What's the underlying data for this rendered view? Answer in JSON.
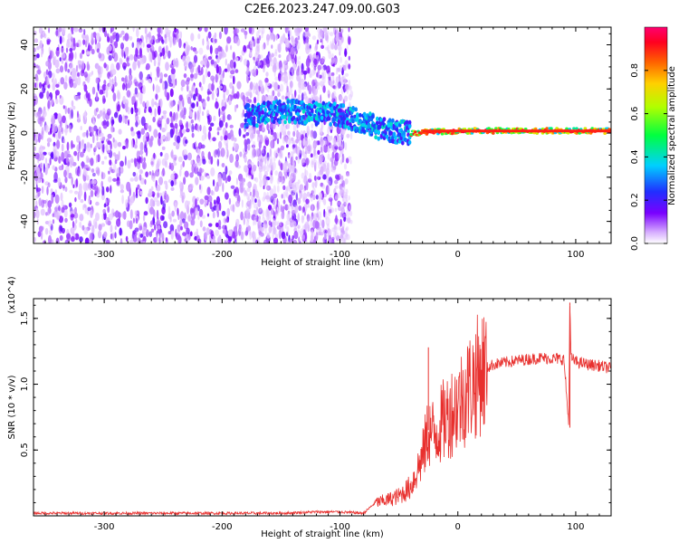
{
  "title": "C2E6.2023.247.09.00.G03",
  "colors": {
    "snr_line": "#e8302e",
    "spectro_noise": "#6a00e8",
    "axis": "#000000"
  },
  "chart_data": [
    {
      "type": "heatmap",
      "title": "C2E6.2023.247.09.00.G03",
      "xlabel": "Height of straight line (km)",
      "ylabel": "Frequency (Hz)",
      "xlim": [
        -360,
        130
      ],
      "ylim": [
        -50,
        48
      ],
      "xticks": [
        -300,
        -200,
        -100,
        0,
        100
      ],
      "yticks": [
        -40,
        -20,
        0,
        20,
        40
      ],
      "description_of_signal": "Broadband noise for heights < -92 km; tracked signal near 0-10 Hz converging to ~1 Hz beyond -40 km",
      "signal_center_hz": [
        {
          "x": -175,
          "y": 8
        },
        {
          "x": -150,
          "y": 10
        },
        {
          "x": -120,
          "y": 9
        },
        {
          "x": -100,
          "y": 8
        },
        {
          "x": -80,
          "y": 5
        },
        {
          "x": -60,
          "y": 1
        },
        {
          "x": -40,
          "y": 0
        },
        {
          "x": 0,
          "y": 1
        },
        {
          "x": 50,
          "y": 1
        },
        {
          "x": 90,
          "y": 1
        },
        {
          "x": 130,
          "y": 1
        }
      ],
      "colorbar": {
        "label": "Normalized spectral amplitude",
        "range": [
          0.0,
          1.0
        ],
        "ticks": [
          0.0,
          0.2,
          0.4,
          0.6,
          0.8
        ]
      }
    },
    {
      "type": "line",
      "xlabel": "Height of straight line (km)",
      "ylabel": "SNR (10 * v/v)",
      "y_multiplier": "(x10^4)",
      "xlim": [
        -360,
        130
      ],
      "ylim": [
        0,
        1.65
      ],
      "xticks": [
        -300,
        -200,
        -100,
        0,
        100
      ],
      "yticks": [
        0.5,
        1.0,
        1.5
      ],
      "series": [
        {
          "name": "SNR",
          "x": [
            -360,
            -300,
            -250,
            -200,
            -150,
            -120,
            -100,
            -80,
            -70,
            -60,
            -50,
            -40,
            -30,
            -25,
            -20,
            -10,
            0,
            10,
            20,
            30,
            50,
            70,
            90,
            94,
            95,
            96,
            100,
            110,
            120,
            130
          ],
          "y": [
            0.02,
            0.02,
            0.02,
            0.02,
            0.02,
            0.03,
            0.03,
            0.02,
            0.1,
            0.12,
            0.15,
            0.22,
            0.45,
            0.65,
            0.62,
            0.75,
            0.85,
            0.98,
            1.1,
            1.15,
            1.18,
            1.2,
            1.19,
            0.7,
            1.6,
            1.2,
            1.17,
            1.15,
            1.14,
            1.12
          ]
        }
      ],
      "spikes": [
        {
          "x": -25,
          "y": 1.28
        },
        {
          "x": 95,
          "y": 1.62
        },
        {
          "x": 95,
          "y": 0.67
        }
      ]
    }
  ]
}
